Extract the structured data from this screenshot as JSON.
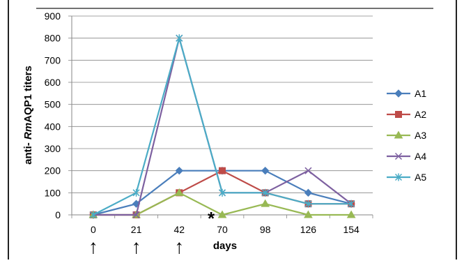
{
  "chart_data": {
    "type": "line",
    "x_categories": [
      "0",
      "21",
      "42",
      "70",
      "98",
      "126",
      "154"
    ],
    "ylabel_prefix": "anti- ",
    "ylabel_italic": "Rm",
    "ylabel_suffix": "AQP1 titers",
    "xlabel": "days",
    "ylim": [
      0,
      900
    ],
    "yticks": [
      "0",
      "100",
      "200",
      "300",
      "400",
      "500",
      "600",
      "700",
      "800",
      "900"
    ],
    "grid": "horizontal",
    "legend_position": "right",
    "annotations": {
      "asterisk": "*",
      "asterisk_at_category": "70",
      "arrow_glyph": "↑",
      "arrows_at_categories": [
        "0",
        "21",
        "42"
      ]
    },
    "series": [
      {
        "name": "A1",
        "color": "#4a7ebb",
        "marker": "diamond",
        "values": [
          0,
          50,
          200,
          200,
          200,
          100,
          50
        ]
      },
      {
        "name": "A2",
        "color": "#be4b48",
        "marker": "square",
        "values": [
          0,
          0,
          100,
          200,
          100,
          50,
          50
        ]
      },
      {
        "name": "A3",
        "color": "#98b954",
        "marker": "triangle",
        "values": [
          0,
          0,
          100,
          0,
          50,
          0,
          0
        ]
      },
      {
        "name": "A4",
        "color": "#7d60a0",
        "marker": "x",
        "values": [
          0,
          0,
          800,
          100,
          100,
          200,
          50
        ]
      },
      {
        "name": "A5",
        "color": "#4bacc6",
        "marker": "star",
        "values": [
          0,
          100,
          800,
          100,
          100,
          50,
          50
        ]
      }
    ]
  }
}
